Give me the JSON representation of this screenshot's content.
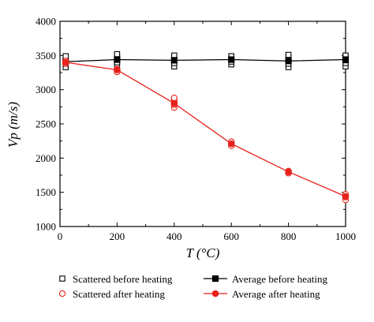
{
  "chart_data": {
    "type": "line",
    "title": "",
    "xlabel": "T (°C)",
    "ylabel": "Vp (m/s)",
    "xlim": [
      0,
      1000
    ],
    "ylim": [
      1000,
      4000
    ],
    "xticks": [
      0,
      200,
      400,
      600,
      800,
      1000
    ],
    "yticks": [
      1000,
      1500,
      2000,
      2500,
      3000,
      3500,
      4000
    ],
    "grid": false,
    "legend_position": "bottom",
    "series": [
      {
        "name": "Scattered before heating",
        "kind": "scatter",
        "marker": "open-square",
        "color": "#000000",
        "points": [
          [
            20,
            3330
          ],
          [
            20,
            3380
          ],
          [
            20,
            3420
          ],
          [
            20,
            3460
          ],
          [
            20,
            3490
          ],
          [
            200,
            3360
          ],
          [
            200,
            3400
          ],
          [
            200,
            3440
          ],
          [
            200,
            3480
          ],
          [
            200,
            3520
          ],
          [
            400,
            3340
          ],
          [
            400,
            3390
          ],
          [
            400,
            3430
          ],
          [
            400,
            3470
          ],
          [
            400,
            3500
          ],
          [
            600,
            3370
          ],
          [
            600,
            3410
          ],
          [
            600,
            3440
          ],
          [
            600,
            3480
          ],
          [
            600,
            3490
          ],
          [
            800,
            3330
          ],
          [
            800,
            3380
          ],
          [
            800,
            3420
          ],
          [
            800,
            3470
          ],
          [
            800,
            3510
          ],
          [
            1000,
            3340
          ],
          [
            1000,
            3390
          ],
          [
            1000,
            3430
          ],
          [
            1000,
            3470
          ],
          [
            1000,
            3500
          ]
        ]
      },
      {
        "name": "Average before heating",
        "kind": "line",
        "marker": "filled-square",
        "color": "#000000",
        "points": [
          [
            20,
            3410
          ],
          [
            200,
            3440
          ],
          [
            400,
            3430
          ],
          [
            600,
            3440
          ],
          [
            800,
            3420
          ],
          [
            1000,
            3440
          ]
        ]
      },
      {
        "name": "Scattered after heating",
        "kind": "scatter",
        "marker": "open-circle",
        "color": "#e8221b",
        "points": [
          [
            20,
            3380
          ],
          [
            20,
            3420
          ],
          [
            200,
            3260
          ],
          [
            200,
            3300
          ],
          [
            400,
            2740
          ],
          [
            400,
            2780
          ],
          [
            400,
            2820
          ],
          [
            400,
            2860
          ],
          [
            400,
            2880
          ],
          [
            600,
            2180
          ],
          [
            600,
            2220
          ],
          [
            600,
            2240
          ],
          [
            800,
            1780
          ],
          [
            800,
            1810
          ],
          [
            1000,
            1390
          ],
          [
            1000,
            1430
          ],
          [
            1000,
            1470
          ]
        ]
      },
      {
        "name": "Average after heating",
        "kind": "line",
        "marker": "filled-circle",
        "color": "#e8221b",
        "points": [
          [
            20,
            3400
          ],
          [
            200,
            3290
          ],
          [
            400,
            2800
          ],
          [
            600,
            2210
          ],
          [
            800,
            1800
          ],
          [
            1000,
            1440
          ]
        ]
      }
    ],
    "legend": {
      "col1": [
        {
          "label": "Scattered before heating",
          "marker": "open-square",
          "color": "#000000"
        },
        {
          "label": "Scattered after heating",
          "marker": "open-circle",
          "color": "#e8221b"
        }
      ],
      "col2": [
        {
          "label": "Average before heating",
          "marker": "filled-square",
          "color": "#000000"
        },
        {
          "label": "Average after heating",
          "marker": "filled-circle",
          "color": "#e8221b"
        }
      ]
    }
  }
}
